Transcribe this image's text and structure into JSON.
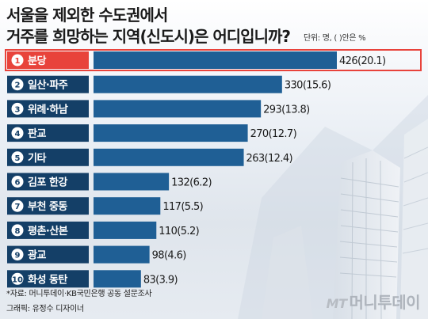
{
  "title_line1": "서울을 제외한 수도권에서",
  "title_line2": "거주를 희망하는 지역(신도시)은 어디입니까?",
  "unit_note": "단위: 명, ( )안은 %",
  "source": "*자료: 머니투데이·KB국민은행 공동 설문조사",
  "credit": "그래픽: 유정수 디자이너",
  "logo_mt": "MT",
  "logo_text": "머니투데이",
  "colors": {
    "bar": "#1f5f95",
    "bar_dark": "#143f67",
    "badge_bg": "#1f5f95",
    "highlight": "#e8433b",
    "highlight_border": "#e8433b"
  },
  "chart_data": {
    "type": "bar",
    "orientation": "horizontal",
    "title": "서울을 제외한 수도권에서 거주를 희망하는 지역(신도시)은 어디입니까?",
    "unit": "명, ( )안은 %",
    "categories": [
      "분당",
      "일산·파주",
      "위례·하남",
      "판교",
      "기타",
      "김포 한강",
      "부천 중동",
      "평촌·산본",
      "광교",
      "화성 동탄"
    ],
    "ranks": [
      1,
      2,
      3,
      4,
      5,
      6,
      7,
      8,
      9,
      10
    ],
    "values": [
      426,
      330,
      293,
      270,
      263,
      132,
      117,
      110,
      98,
      83
    ],
    "percents": [
      20.1,
      15.6,
      13.8,
      12.7,
      12.4,
      6.2,
      5.5,
      5.2,
      4.6,
      3.9
    ],
    "labels": [
      "426(20.1)",
      "330(15.6)",
      "293(13.8)",
      "270(12.7)",
      "263(12.4)",
      "132(6.2)",
      "117(5.5)",
      "110(5.2)",
      "98(4.6)",
      "83(3.9)"
    ],
    "highlighted_index": 0
  }
}
